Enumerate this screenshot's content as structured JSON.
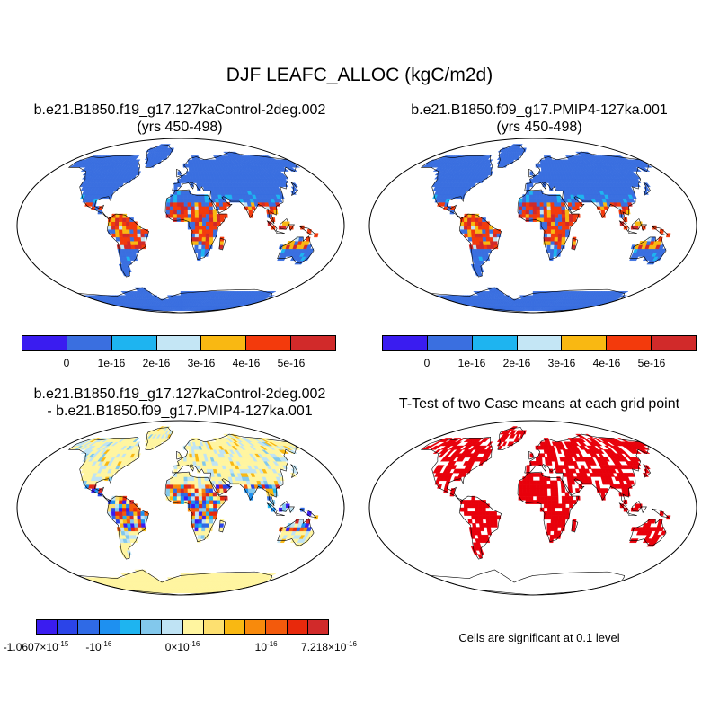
{
  "title": "DJF LEAFC_ALLOC (kgC/m2d)",
  "panels": {
    "top_left": {
      "title_line1": "b.e21.B1850.f19_g17.127kaControl-2deg.002",
      "title_line2": "(yrs 450-498)"
    },
    "top_right": {
      "title_line1": "b.e21.B1850.f09_g17.PMIP4-127ka.001",
      "title_line2": "(yrs 450-498)"
    },
    "bottom_left": {
      "title_line1": "b.e21.B1850.f19_g17.127kaControl-2deg.002",
      "title_line2": "- b.e21.B1850.f09_g17.PMIP4-127ka.001"
    },
    "bottom_right": {
      "title_line1": "T-Test of two Case means at each grid point",
      "note": "Cells are significant at 0.1 level"
    }
  },
  "colorbar_cases": {
    "colors": [
      "#3a1cf0",
      "#3a6fe0",
      "#1eb4f0",
      "#c4e6f5",
      "#f9b812",
      "#f33a0c",
      "#d12a2a"
    ],
    "labels": [
      "0",
      "1e-16",
      "2e-16",
      "3e-16",
      "4e-16",
      "5e-16"
    ]
  },
  "colorbar_diff": {
    "colors": [
      "#3a1cf0",
      "#2b44e8",
      "#2f6ae6",
      "#1e90f0",
      "#1eb4f0",
      "#82c8ec",
      "#bfe3f4",
      "#fff5a0",
      "#fde070",
      "#f9b812",
      "#f88a0c",
      "#f35a0c",
      "#e8290c",
      "#d12a2a"
    ],
    "labels": [
      {
        "base": "-1.0607×10",
        "exp": "-15"
      },
      {
        "base": "-10",
        "exp": "-16"
      },
      {
        "base": "0×10",
        "exp": "-16"
      },
      {
        "base": "10",
        "exp": "-16"
      },
      {
        "base": "7.218×10",
        "exp": "-16"
      }
    ]
  },
  "map_colors": {
    "land_cold": "#3a6fe0",
    "tropics_hot": "#f33a0c",
    "tropics_warm": "#f9b812",
    "diff_base": "#fff5a0",
    "diff_light": "#bfe3f4",
    "significant": "#e8000b",
    "antarctica_diff": "#fff5a0"
  }
}
